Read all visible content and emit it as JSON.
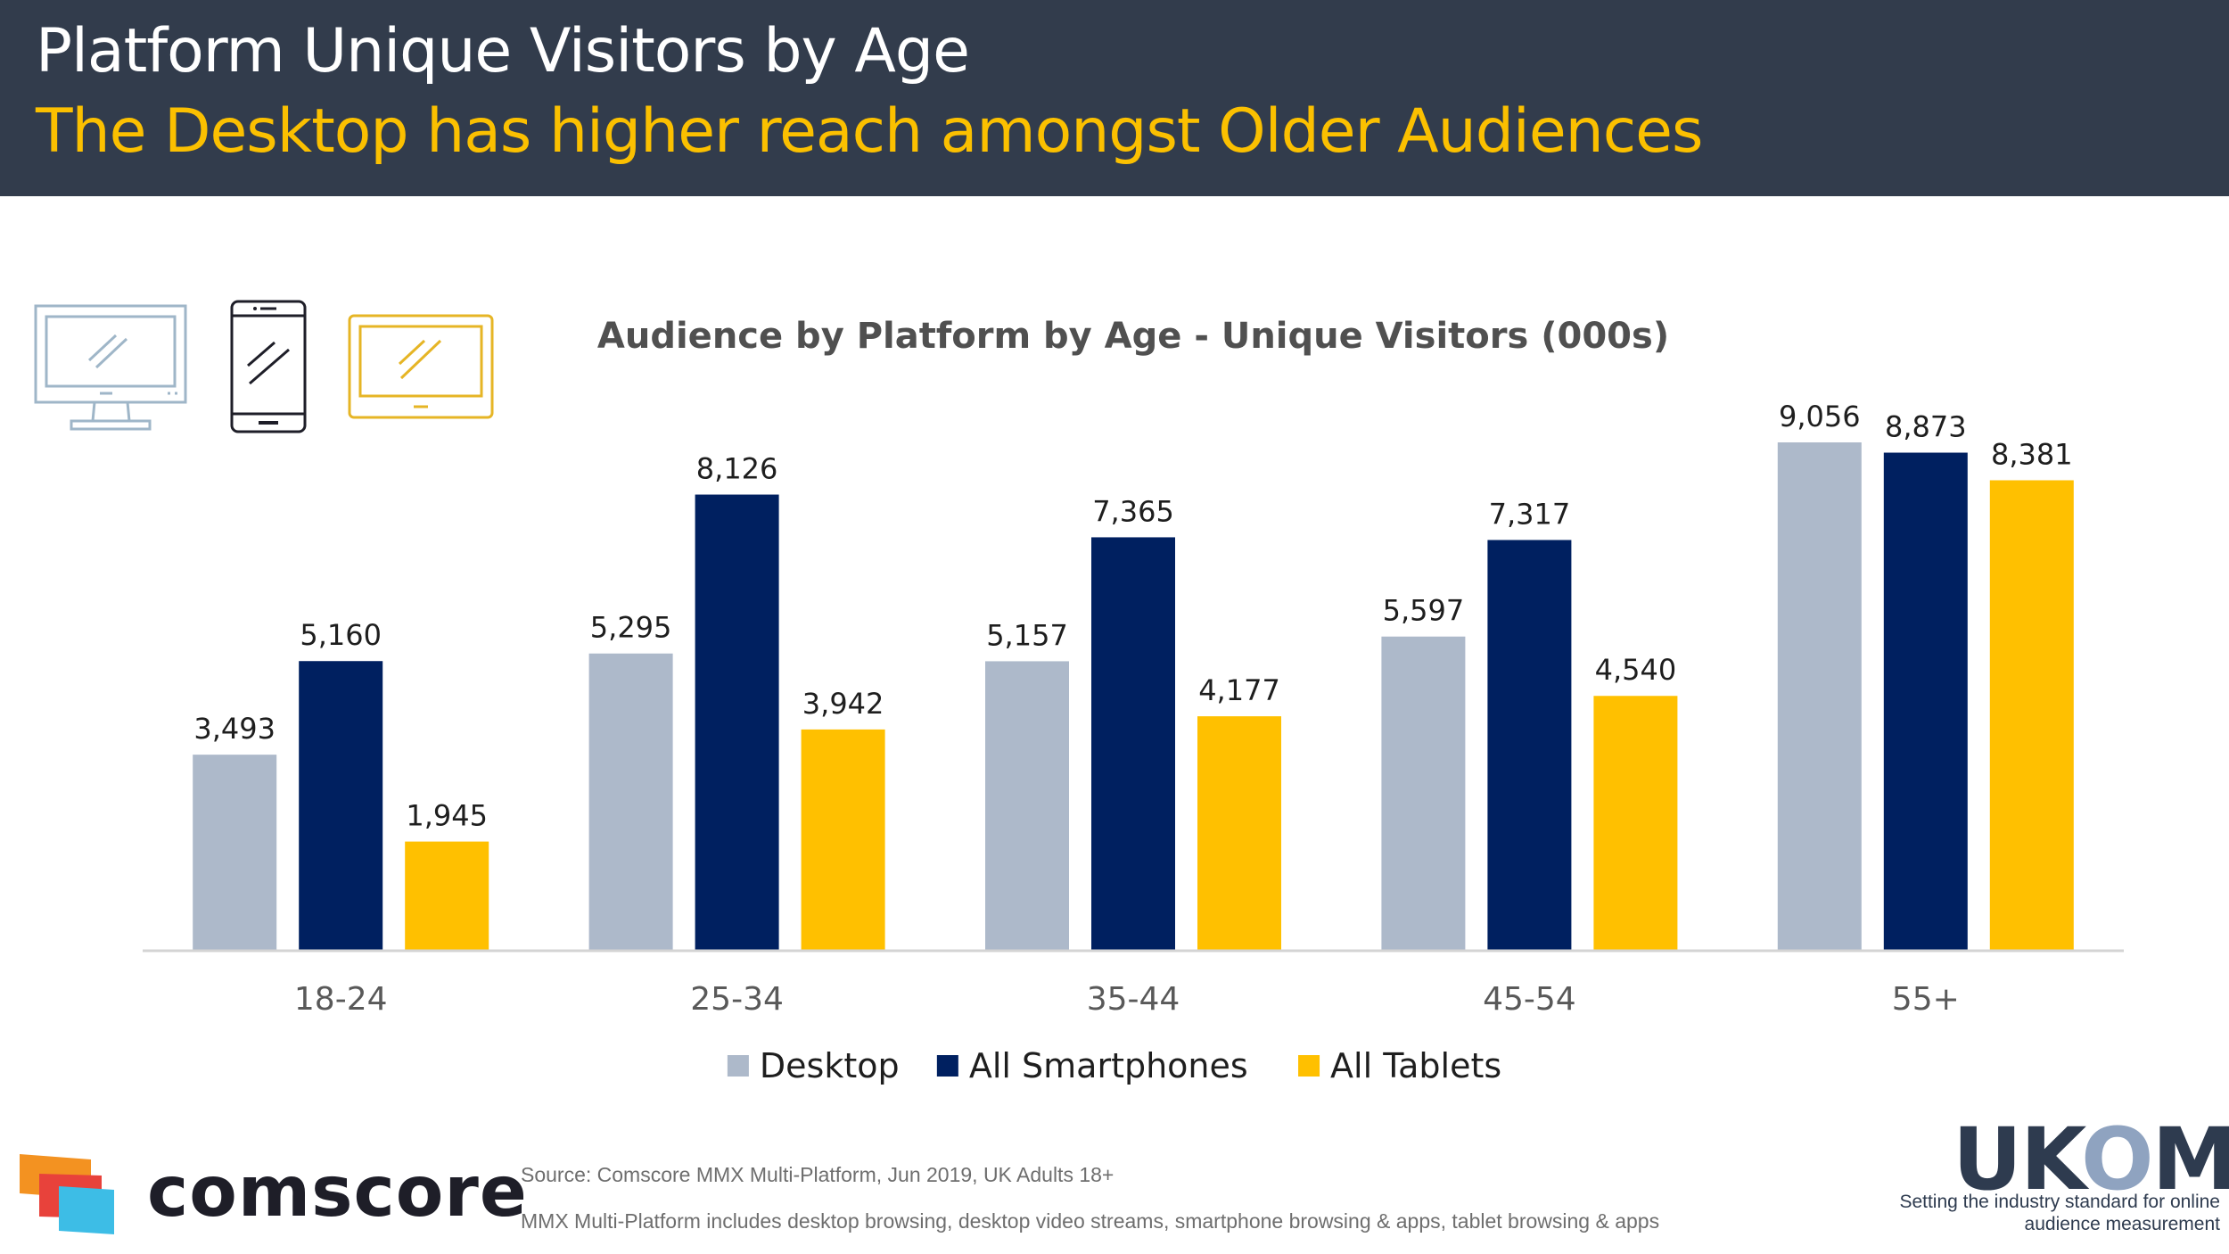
{
  "header": {
    "title": "Platform Unique Visitors by Age",
    "subtitle": "The Desktop has higher reach amongst Older Audiences"
  },
  "icons": [
    "desktop-monitor-icon",
    "smartphone-icon",
    "tablet-icon"
  ],
  "chart_data": {
    "type": "bar",
    "title": "Audience by Platform by Age - Unique Visitors (000s)",
    "categories": [
      "18-24",
      "25-34",
      "35-44",
      "45-54",
      "55+"
    ],
    "series": [
      {
        "name": "Desktop",
        "color": "#adb9ca",
        "values": [
          3493,
          5295,
          5157,
          5597,
          9056
        ],
        "labels": [
          "3,493",
          "5,295",
          "5,157",
          "5,597",
          "9,056"
        ]
      },
      {
        "name": "All Smartphones",
        "color": "#002060",
        "values": [
          5160,
          8126,
          7365,
          7317,
          8873
        ],
        "labels": [
          "5,160",
          "8,126",
          "7,365",
          "7,317",
          "8,873"
        ]
      },
      {
        "name": "All Tablets",
        "color": "#ffc000",
        "values": [
          1945,
          3942,
          4177,
          4540,
          8381
        ],
        "labels": [
          "1,945",
          "3,942",
          "4,177",
          "4,540",
          "8,381"
        ]
      }
    ],
    "xlabel": "",
    "ylabel": "",
    "ylim": [
      0,
      9600
    ],
    "grid": false,
    "legend_position": "bottom-center"
  },
  "footer": {
    "brand": "comscore",
    "source": "Source: Comscore MMX Multi-Platform,  Jun 2019, UK Adults 18+",
    "note": "MMX Multi-Platform  includes desktop browsing, desktop video streams, smartphone browsing & apps, tablet browsing & apps",
    "ukom_prefix": "UK",
    "ukom_o": "O",
    "ukom_suffix": "M",
    "ukom_tagline": "Setting the industry standard for online audience measurement"
  }
}
